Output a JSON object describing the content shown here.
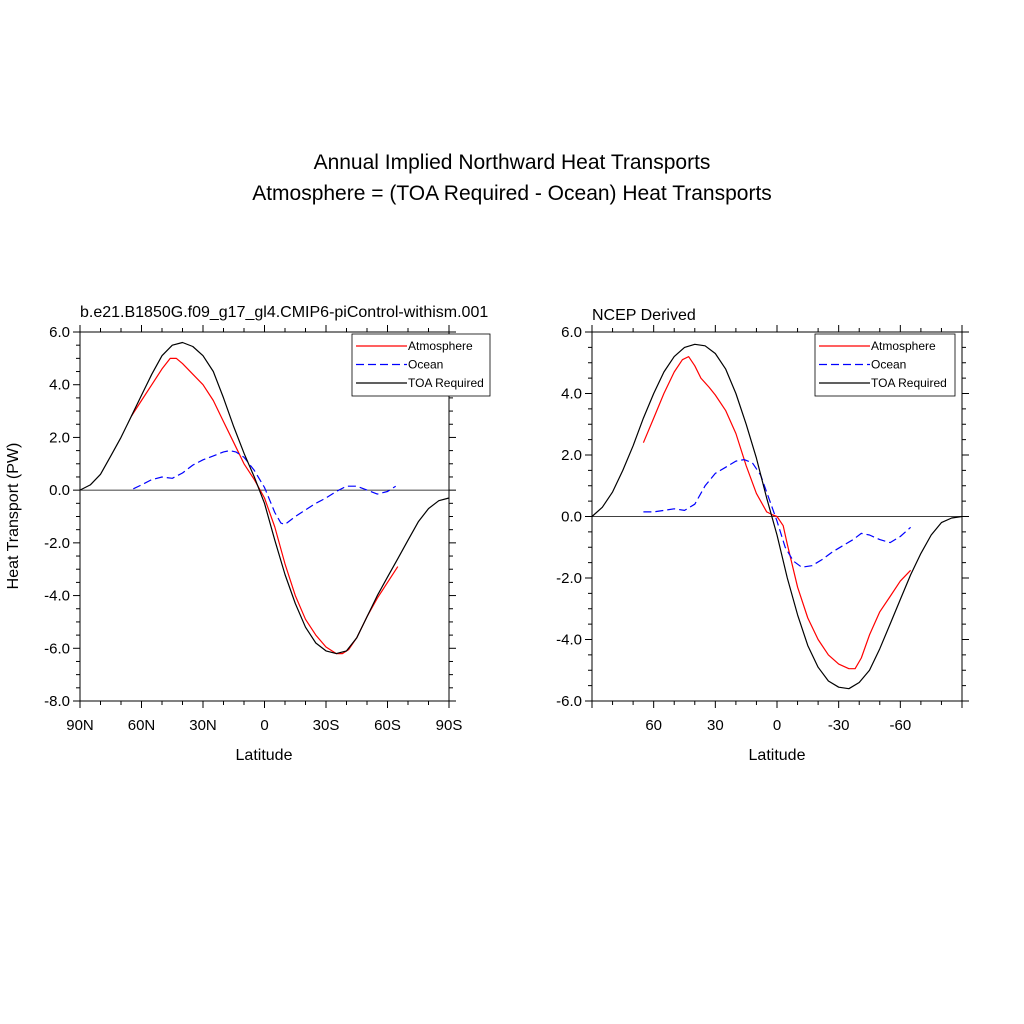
{
  "figure": {
    "title_line1": "Annual Implied Northward Heat Transports",
    "title_line2": "Atmosphere = (TOA Required - Ocean) Heat Transports"
  },
  "chart_data": [
    {
      "type": "line",
      "panel_label": "b.e21.B1850G.f09_g17_gl4.CMIP6-piControl-withism.001",
      "xlabel": "Latitude",
      "ylabel": "Heat Transport (PW)",
      "xlim": [
        90,
        -90
      ],
      "ylim": [
        -8,
        6
      ],
      "x_reversed": true,
      "x_ticks": [
        90,
        60,
        30,
        0,
        -30,
        -60,
        -90
      ],
      "x_tick_labels": [
        "90N",
        "60N",
        "30N",
        "0",
        "30S",
        "60S",
        "90S"
      ],
      "y_ticks": [
        6,
        4,
        2,
        0,
        -2,
        -4,
        -6,
        -8
      ],
      "y_tick_labels": [
        "6.0",
        "4.0",
        "2.0",
        "0.0",
        "-2.0",
        "-4.0",
        "-6.0",
        "-8.0"
      ],
      "zero_line": true,
      "legend_position": "top-right",
      "series": [
        {
          "name": "Atmosphere",
          "color": "#ff0000",
          "dash": "solid",
          "x": [
            65,
            60,
            55,
            50,
            46,
            43,
            40,
            35,
            30,
            25,
            20,
            15,
            10,
            5,
            0,
            -5,
            -10,
            -15,
            -20,
            -25,
            -30,
            -35,
            -38,
            -41,
            -45,
            -50,
            -55,
            -60,
            -65
          ],
          "y": [
            2.8,
            3.4,
            4.0,
            4.6,
            5.0,
            5.0,
            4.8,
            4.4,
            4.0,
            3.4,
            2.6,
            1.8,
            1.0,
            0.4,
            -0.3,
            -1.4,
            -2.8,
            -4.0,
            -4.9,
            -5.5,
            -5.95,
            -6.2,
            -6.2,
            -6.05,
            -5.6,
            -4.8,
            -4.1,
            -3.5,
            -2.9
          ]
        },
        {
          "name": "Ocean",
          "color": "#0000ff",
          "dash": "dashed",
          "x": [
            64,
            60,
            55,
            50,
            45,
            40,
            35,
            30,
            25,
            20,
            17,
            14,
            10,
            5,
            0,
            -5,
            -8,
            -10,
            -15,
            -20,
            -25,
            -30,
            -35,
            -40,
            -45,
            -50,
            -55,
            -60,
            -64
          ],
          "y": [
            0.05,
            0.2,
            0.4,
            0.5,
            0.45,
            0.65,
            0.95,
            1.15,
            1.3,
            1.45,
            1.5,
            1.45,
            1.25,
            0.75,
            0.1,
            -0.85,
            -1.25,
            -1.3,
            -1.0,
            -0.75,
            -0.5,
            -0.3,
            -0.05,
            0.15,
            0.15,
            0.0,
            -0.15,
            -0.05,
            0.15
          ]
        },
        {
          "name": "TOA Required",
          "color": "#000000",
          "dash": "solid",
          "x": [
            90,
            85,
            80,
            75,
            70,
            65,
            60,
            55,
            50,
            45,
            40,
            35,
            30,
            25,
            20,
            15,
            10,
            5,
            0,
            -5,
            -10,
            -15,
            -20,
            -25,
            -30,
            -35,
            -40,
            -45,
            -50,
            -55,
            -60,
            -65,
            -70,
            -75,
            -80,
            -85,
            -90
          ],
          "y": [
            0.0,
            0.2,
            0.6,
            1.3,
            2.0,
            2.8,
            3.6,
            4.4,
            5.1,
            5.5,
            5.6,
            5.45,
            5.1,
            4.5,
            3.5,
            2.4,
            1.4,
            0.5,
            -0.5,
            -1.9,
            -3.2,
            -4.3,
            -5.2,
            -5.8,
            -6.1,
            -6.2,
            -6.1,
            -5.6,
            -4.8,
            -4.0,
            -3.3,
            -2.6,
            -1.9,
            -1.2,
            -0.7,
            -0.4,
            -0.3
          ]
        }
      ]
    },
    {
      "type": "line",
      "panel_label": "NCEP Derived",
      "xlabel": "Latitude",
      "ylabel": "",
      "xlim": [
        90,
        -90
      ],
      "ylim": [
        -6,
        6
      ],
      "x_reversed": true,
      "x_ticks": [
        60,
        30,
        0,
        -30,
        -60
      ],
      "x_tick_labels": [
        "60",
        "30",
        "0",
        "-30",
        "-60"
      ],
      "y_ticks": [
        6,
        4,
        2,
        0,
        -2,
        -4,
        -6
      ],
      "y_tick_labels": [
        "6.0",
        "4.0",
        "2.0",
        "0.0",
        "-2.0",
        "-4.0",
        "-6.0"
      ],
      "zero_line": true,
      "legend_position": "top-right",
      "series": [
        {
          "name": "Atmosphere",
          "color": "#ff0000",
          "dash": "solid",
          "x": [
            65,
            60,
            55,
            50,
            46,
            43,
            40,
            37,
            33,
            30,
            25,
            20,
            15,
            10,
            5,
            2,
            0,
            -3,
            -5,
            -10,
            -15,
            -20,
            -25,
            -30,
            -35,
            -38,
            -41,
            -45,
            -50,
            -55,
            -60,
            -65
          ],
          "y": [
            2.4,
            3.2,
            4.0,
            4.7,
            5.1,
            5.2,
            4.9,
            4.5,
            4.2,
            3.95,
            3.45,
            2.7,
            1.65,
            0.75,
            0.15,
            0.05,
            0.0,
            -0.3,
            -0.9,
            -2.3,
            -3.3,
            -4.0,
            -4.5,
            -4.8,
            -4.95,
            -4.95,
            -4.6,
            -3.85,
            -3.1,
            -2.6,
            -2.1,
            -1.75
          ]
        },
        {
          "name": "Ocean",
          "color": "#0000ff",
          "dash": "dashed",
          "x": [
            65,
            60,
            55,
            50,
            45,
            40,
            35,
            30,
            25,
            20,
            16,
            12,
            8,
            4,
            0,
            -4,
            -8,
            -12,
            -17,
            -22,
            -27,
            -32,
            -37,
            -41,
            -45,
            -50,
            -55,
            -60,
            -65
          ],
          "y": [
            0.15,
            0.15,
            0.2,
            0.25,
            0.2,
            0.4,
            1.0,
            1.4,
            1.6,
            1.8,
            1.85,
            1.75,
            1.35,
            0.6,
            -0.15,
            -1.0,
            -1.45,
            -1.65,
            -1.6,
            -1.4,
            -1.15,
            -0.95,
            -0.75,
            -0.55,
            -0.6,
            -0.75,
            -0.85,
            -0.65,
            -0.35
          ]
        },
        {
          "name": "TOA Required",
          "color": "#000000",
          "dash": "solid",
          "x": [
            90,
            85,
            80,
            75,
            70,
            65,
            60,
            55,
            50,
            45,
            40,
            35,
            30,
            25,
            20,
            15,
            10,
            5,
            0,
            -5,
            -10,
            -15,
            -20,
            -25,
            -30,
            -35,
            -40,
            -45,
            -50,
            -55,
            -60,
            -65,
            -70,
            -75,
            -80,
            -85,
            -90
          ],
          "y": [
            0.0,
            0.3,
            0.8,
            1.5,
            2.3,
            3.2,
            4.0,
            4.7,
            5.2,
            5.5,
            5.6,
            5.55,
            5.3,
            4.8,
            4.0,
            3.0,
            1.9,
            0.6,
            -0.6,
            -2.0,
            -3.2,
            -4.2,
            -4.9,
            -5.35,
            -5.55,
            -5.6,
            -5.4,
            -5.0,
            -4.3,
            -3.5,
            -2.7,
            -1.9,
            -1.2,
            -0.6,
            -0.2,
            -0.05,
            0.0
          ]
        }
      ]
    }
  ]
}
